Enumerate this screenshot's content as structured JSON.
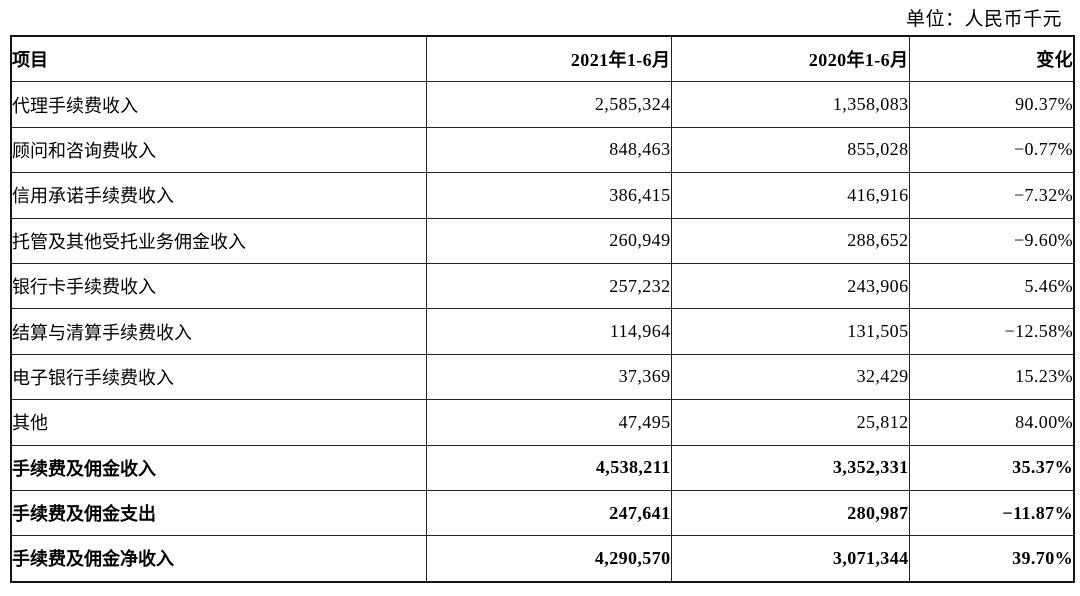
{
  "unit_label": "单位：人民币千元",
  "table": {
    "headers": {
      "item": "项目",
      "period_2021": "2021年1-6月",
      "period_2020": "2020年1-6月",
      "change": "变化"
    },
    "rows": [
      {
        "label": "代理手续费收入",
        "v2021": "2,585,324",
        "v2020": "1,358,083",
        "change": "90.37%",
        "bold": false
      },
      {
        "label": "顾问和咨询费收入",
        "v2021": "848,463",
        "v2020": "855,028",
        "change": "−0.77%",
        "bold": false
      },
      {
        "label": "信用承诺手续费收入",
        "v2021": "386,415",
        "v2020": "416,916",
        "change": "−7.32%",
        "bold": false
      },
      {
        "label": "托管及其他受托业务佣金收入",
        "v2021": "260,949",
        "v2020": "288,652",
        "change": "−9.60%",
        "bold": false
      },
      {
        "label": "银行卡手续费收入",
        "v2021": "257,232",
        "v2020": "243,906",
        "change": "5.46%",
        "bold": false
      },
      {
        "label": "结算与清算手续费收入",
        "v2021": "114,964",
        "v2020": "131,505",
        "change": "−12.58%",
        "bold": false
      },
      {
        "label": "电子银行手续费收入",
        "v2021": "37,369",
        "v2020": "32,429",
        "change": "15.23%",
        "bold": false
      },
      {
        "label": "其他",
        "v2021": "47,495",
        "v2020": "25,812",
        "change": "84.00%",
        "bold": false
      },
      {
        "label": "手续费及佣金收入",
        "v2021": "4,538,211",
        "v2020": "3,352,331",
        "change": "35.37%",
        "bold": true
      },
      {
        "label": "手续费及佣金支出",
        "v2021": "247,641",
        "v2020": "280,987",
        "change": "−11.87%",
        "bold": true
      },
      {
        "label": "手续费及佣金净收入",
        "v2021": "4,290,570",
        "v2020": "3,071,344",
        "change": "39.70%",
        "bold": true
      }
    ]
  }
}
